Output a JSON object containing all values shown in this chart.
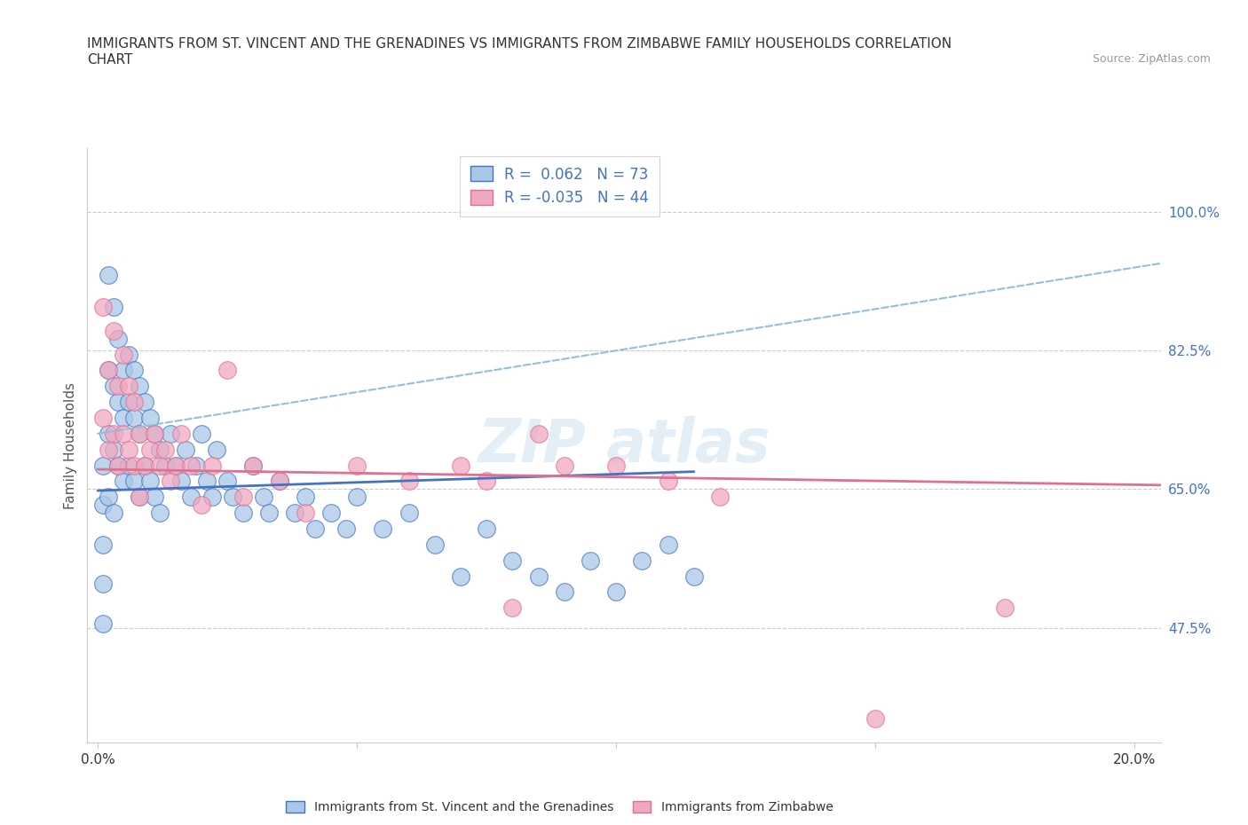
{
  "title_line1": "IMMIGRANTS FROM ST. VINCENT AND THE GRENADINES VS IMMIGRANTS FROM ZIMBABWE FAMILY HOUSEHOLDS CORRELATION",
  "title_line2": "CHART",
  "source_text": "Source: ZipAtlas.com",
  "ylabel": "Family Households",
  "x_tick_positions": [
    0.0,
    0.05,
    0.1,
    0.15,
    0.2
  ],
  "x_tick_labels": [
    "0.0%",
    "",
    "",
    "",
    "20.0%"
  ],
  "y_tick_labels": [
    "47.5%",
    "65.0%",
    "82.5%",
    "100.0%"
  ],
  "y_tick_values": [
    0.475,
    0.65,
    0.825,
    1.0
  ],
  "xlim": [
    -0.002,
    0.205
  ],
  "ylim": [
    0.33,
    1.08
  ],
  "color_blue": "#a8c8e8",
  "color_pink": "#f0a8c0",
  "line_color_blue": "#4472c4",
  "line_color_pink": "#e07090",
  "trendline_dash_color": "#90c0e0",
  "grid_color": "#cccccc",
  "watermark_color": "#ddeeff",
  "legend_label1": "Immigrants from St. Vincent and the Grenadines",
  "legend_label2": "Immigrants from Zimbabwe",
  "blue_trend_x": [
    0.0,
    0.115
  ],
  "blue_trend_y": [
    0.648,
    0.672
  ],
  "pink_trend_x": [
    0.0,
    0.205
  ],
  "pink_trend_y": [
    0.675,
    0.655
  ],
  "dash_trend_x": [
    0.0,
    0.205
  ],
  "dash_trend_y": [
    0.72,
    0.935
  ],
  "blue_x": [
    0.001,
    0.001,
    0.001,
    0.001,
    0.001,
    0.002,
    0.002,
    0.002,
    0.002,
    0.003,
    0.003,
    0.003,
    0.003,
    0.004,
    0.004,
    0.004,
    0.005,
    0.005,
    0.005,
    0.006,
    0.006,
    0.006,
    0.007,
    0.007,
    0.007,
    0.008,
    0.008,
    0.008,
    0.009,
    0.009,
    0.01,
    0.01,
    0.011,
    0.011,
    0.012,
    0.012,
    0.013,
    0.014,
    0.015,
    0.016,
    0.017,
    0.018,
    0.019,
    0.02,
    0.021,
    0.022,
    0.023,
    0.025,
    0.026,
    0.028,
    0.03,
    0.032,
    0.033,
    0.035,
    0.038,
    0.04,
    0.042,
    0.045,
    0.048,
    0.05,
    0.055,
    0.06,
    0.065,
    0.07,
    0.075,
    0.08,
    0.085,
    0.09,
    0.095,
    0.1,
    0.105,
    0.11,
    0.115
  ],
  "blue_y": [
    0.68,
    0.63,
    0.58,
    0.53,
    0.48,
    0.92,
    0.8,
    0.72,
    0.64,
    0.88,
    0.78,
    0.7,
    0.62,
    0.84,
    0.76,
    0.68,
    0.8,
    0.74,
    0.66,
    0.82,
    0.76,
    0.68,
    0.8,
    0.74,
    0.66,
    0.78,
    0.72,
    0.64,
    0.76,
    0.68,
    0.74,
    0.66,
    0.72,
    0.64,
    0.7,
    0.62,
    0.68,
    0.72,
    0.68,
    0.66,
    0.7,
    0.64,
    0.68,
    0.72,
    0.66,
    0.64,
    0.7,
    0.66,
    0.64,
    0.62,
    0.68,
    0.64,
    0.62,
    0.66,
    0.62,
    0.64,
    0.6,
    0.62,
    0.6,
    0.64,
    0.6,
    0.62,
    0.58,
    0.54,
    0.6,
    0.56,
    0.54,
    0.52,
    0.56,
    0.52,
    0.56,
    0.58,
    0.54
  ],
  "pink_x": [
    0.001,
    0.001,
    0.002,
    0.002,
    0.003,
    0.003,
    0.004,
    0.004,
    0.005,
    0.005,
    0.006,
    0.006,
    0.007,
    0.007,
    0.008,
    0.008,
    0.009,
    0.01,
    0.011,
    0.012,
    0.013,
    0.014,
    0.015,
    0.016,
    0.018,
    0.02,
    0.022,
    0.025,
    0.028,
    0.03,
    0.035,
    0.04,
    0.05,
    0.06,
    0.07,
    0.075,
    0.08,
    0.085,
    0.09,
    0.1,
    0.11,
    0.12,
    0.15,
    0.175
  ],
  "pink_y": [
    0.88,
    0.74,
    0.8,
    0.7,
    0.85,
    0.72,
    0.78,
    0.68,
    0.82,
    0.72,
    0.78,
    0.7,
    0.76,
    0.68,
    0.72,
    0.64,
    0.68,
    0.7,
    0.72,
    0.68,
    0.7,
    0.66,
    0.68,
    0.72,
    0.68,
    0.63,
    0.68,
    0.8,
    0.64,
    0.68,
    0.66,
    0.62,
    0.68,
    0.66,
    0.68,
    0.66,
    0.5,
    0.72,
    0.68,
    0.68,
    0.66,
    0.64,
    0.36,
    0.5
  ]
}
